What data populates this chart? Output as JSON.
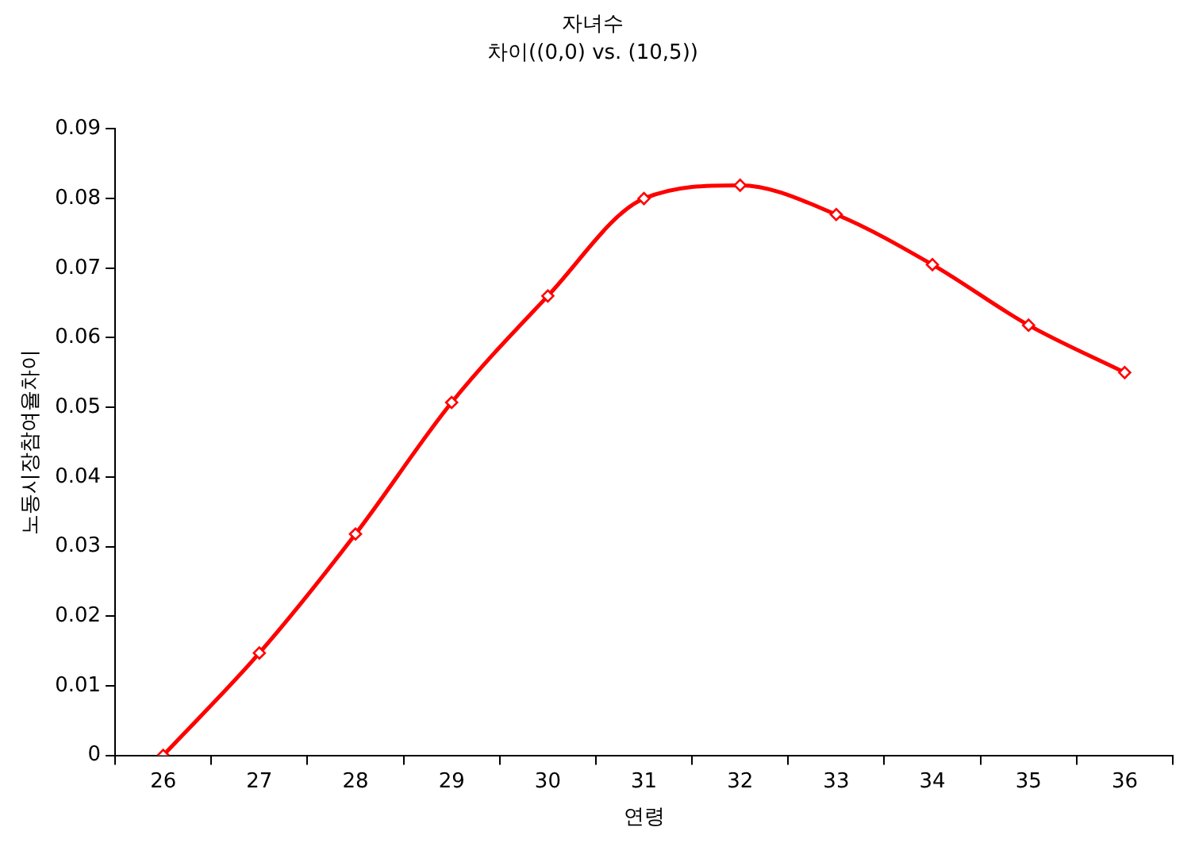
{
  "chart_data": {
    "type": "line",
    "title": "자녀수",
    "subtitle": "차이((0,0) vs. (10,5))",
    "xlabel": "연령",
    "ylabel": "노동시장참여율차이",
    "categories": [
      "26",
      "27",
      "28",
      "29",
      "30",
      "31",
      "32",
      "33",
      "34",
      "35",
      "36"
    ],
    "series": [
      {
        "color": "#ff0000",
        "values": [
          0,
          0.0147,
          0.0318,
          0.0507,
          0.066,
          0.08,
          0.0819,
          0.0777,
          0.0705,
          0.0618,
          0.055
        ]
      }
    ],
    "ylim": [
      0,
      0.09
    ],
    "yticks": [
      0,
      0.01,
      0.02,
      0.03,
      0.04,
      0.05,
      0.06,
      0.07,
      0.08,
      0.09
    ],
    "grid": false,
    "legend": false,
    "marker": "diamond",
    "line_style": "solid"
  }
}
